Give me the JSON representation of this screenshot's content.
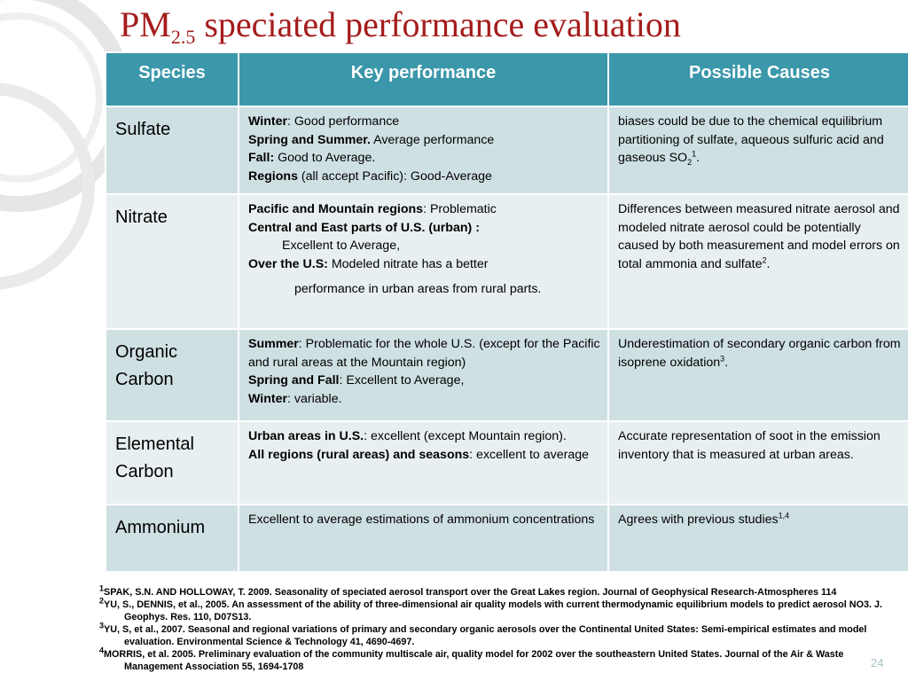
{
  "title": {
    "main": "PM",
    "sub": "2.5",
    "rest": " speciated performance evaluation"
  },
  "table": {
    "headers": {
      "species": "Species",
      "key": "Key performance",
      "causes": "Possible Causes"
    },
    "rows": [
      {
        "species": "Sulfate",
        "key": [
          {
            "b": "Winter",
            "t": ": Good performance"
          },
          {
            "b": "Spring and Summer.",
            "t": " Average performance"
          },
          {
            "b": "Fall:",
            "t": " Good to Average."
          },
          {
            "b": "Regions",
            "t": " (all accept Pacific): Good-Average"
          }
        ],
        "causes": {
          "text": "biases could be due to the chemical equilibrium partitioning of sulfate, aqueous sulfuric acid and gaseous SO",
          "sub": "2",
          "sup": "1",
          "end": "."
        }
      },
      {
        "species": "Nitrate",
        "key": [
          {
            "b": "Pacific and Mountain regions",
            "t": ": Problematic"
          },
          {
            "b": "Central and East parts of U.S. (urban) :",
            "t": ""
          },
          {
            "b": "",
            "t": "Excellent to Average,",
            "indent": 1
          },
          {
            "b": "Over the U.S: ",
            "t": " Modeled nitrate has a better"
          },
          {
            "b": "",
            "t": "performance in urban areas from rural parts.",
            "indent": 2
          }
        ],
        "causes": {
          "text": "Differences between measured nitrate aerosol and modeled nitrate aerosol could be potentially caused by both measurement and model errors on total ammonia and sulfate",
          "sub": "",
          "sup": "2",
          "end": "."
        }
      },
      {
        "species": "Organic Carbon",
        "key": [
          {
            "b": "Summer",
            "t": ": Problematic for the whole U.S. (except for the Pacific and rural areas at the Mountain region)"
          },
          {
            "b": "Spring and Fall",
            "t": ": Excellent to Average,"
          },
          {
            "b": "Winter",
            "t": ": variable."
          }
        ],
        "causes": {
          "text": "Underestimation of secondary organic carbon from isoprene oxidation",
          "sub": "",
          "sup": "3",
          "end": "."
        }
      },
      {
        "species": "Elemental Carbon",
        "key": [
          {
            "b": "Urban areas in U.S.",
            "t": ": excellent (except Mountain region)."
          },
          {
            "b": "All regions (rural areas) and seasons",
            "t": ": excellent to average"
          }
        ],
        "causes": {
          "text": "Accurate representation of soot in the emission inventory that is measured at urban areas.",
          "sub": "",
          "sup": "",
          "end": ""
        }
      },
      {
        "species": "Ammonium",
        "key": [
          {
            "b": "",
            "t": "Excellent to average estimations of ammonium concentrations"
          }
        ],
        "causes": {
          "text": "Agrees with previous studies",
          "sub": "",
          "sup": "1,4",
          "end": ""
        }
      }
    ]
  },
  "references": [
    {
      "num": "1",
      "text": "SPAK, S.N. AND HOLLOWAY, T. 2009. Seasonality of speciated aerosol transport over the Great Lakes region. Journal of Geophysical Research-Atmospheres 114"
    },
    {
      "num": "2",
      "text": "YU, S., DENNIS, et al., 2005. An assessment of the ability of three-dimensional air quality models with current thermodynamic equilibrium models to predict aerosol NO3. J. Geophys. Res. 110, D07S13."
    },
    {
      "num": "3",
      "text": "YU, S, et al., 2007. Seasonal and regional variations of primary and secondary organic aerosols over the Continental United States: Semi-empirical estimates and model evaluation. Environmental Science & Technology 41, 4690-4697."
    },
    {
      "num": "4",
      "text": "MORRIS, et al. 2005. Preliminary evaluation of the community multiscale air, quality model for 2002 over the southeastern United States. Journal of the Air & Waste Management Association 55, 1694-1708"
    }
  ],
  "page_number": "24",
  "colors": {
    "title": "#a51c1c",
    "header_bg": "#3b97aa",
    "row_dark": "#cfe0e3",
    "row_light": "#e8eff0"
  }
}
